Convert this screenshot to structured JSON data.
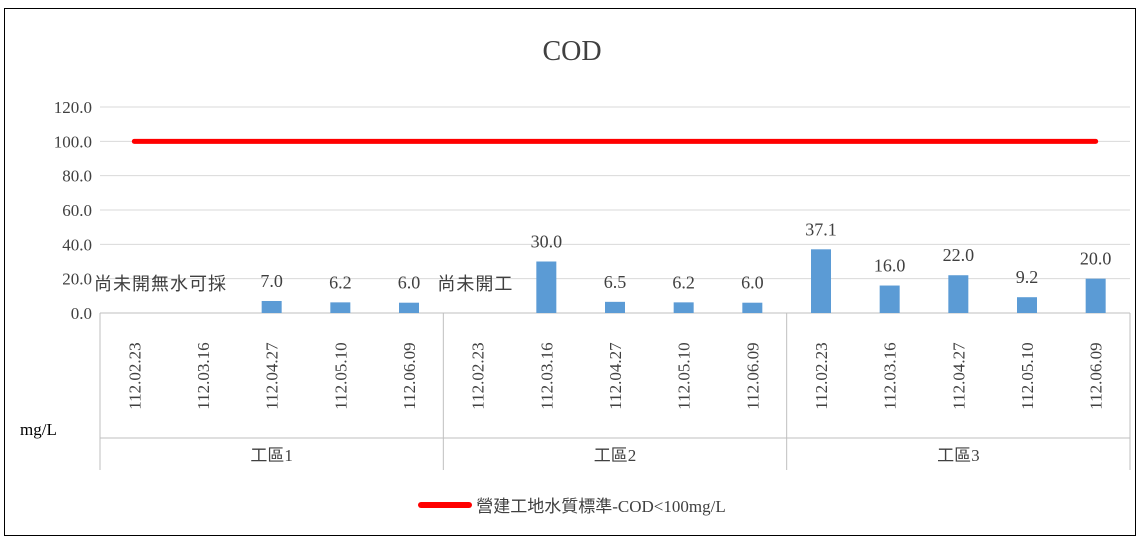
{
  "chart_data": {
    "type": "bar",
    "title": "COD",
    "unit_label": "mg/L",
    "ylim": [
      0,
      120
    ],
    "y_ticks": [
      "0.0",
      "20.0",
      "40.0",
      "60.0",
      "80.0",
      "100.0",
      "120.0"
    ],
    "grid": true,
    "groups": [
      {
        "name": "工區1",
        "dates": [
          "112.02.23",
          "112.03.16",
          "112.04.27",
          "112.05.10",
          "112.06.09"
        ],
        "values": [
          null,
          null,
          7.0,
          6.2,
          6.0
        ],
        "labels": [
          "",
          "",
          "7.0",
          "6.2",
          "6.0"
        ],
        "note": "尚未開無水可採"
      },
      {
        "name": "工區2",
        "dates": [
          "112.02.23",
          "112.03.16",
          "112.04.27",
          "112.05.10",
          "112.06.09"
        ],
        "values": [
          null,
          30.0,
          6.5,
          6.2,
          6.0
        ],
        "labels": [
          "",
          "30.0",
          "6.5",
          "6.2",
          "6.0"
        ],
        "note": "尚未開工"
      },
      {
        "name": "工區3",
        "dates": [
          "112.02.23",
          "112.03.16",
          "112.04.27",
          "112.05.10",
          "112.06.09"
        ],
        "values": [
          37.1,
          16.0,
          22.0,
          9.2,
          20.0
        ],
        "labels": [
          "37.1",
          "16.0",
          "22.0",
          "9.2",
          "20.0"
        ],
        "note": ""
      }
    ],
    "standard_line": {
      "name": "營建工地水質標準-COD<100mg/L",
      "value": 100
    },
    "legend_position": "bottom",
    "colors": {
      "bar": "#5b9bd5",
      "standard": "#ff0000",
      "grid": "#d9d9d9",
      "axis": "#bfbfbf",
      "text": "#404040"
    }
  }
}
